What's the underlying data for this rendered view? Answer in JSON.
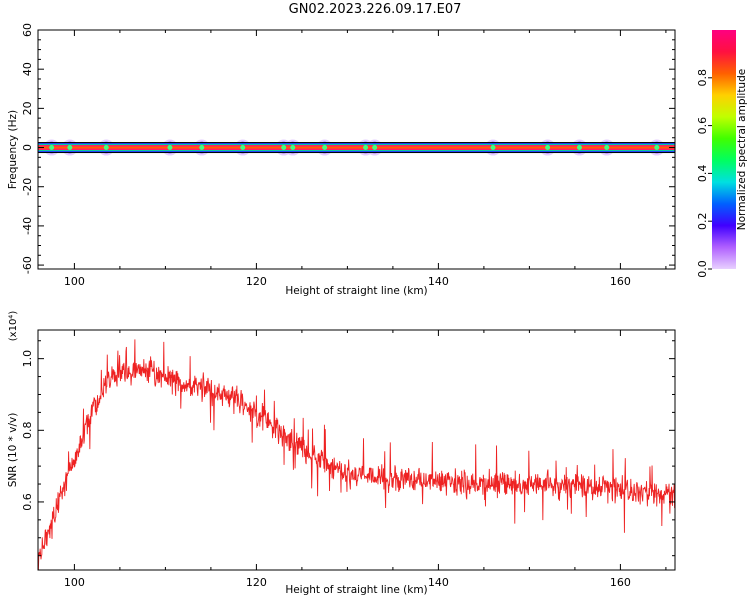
{
  "title": "GN02.2023.226.09.17.E07",
  "chart_data": [
    {
      "type": "heatmap",
      "xlabel": "Height of straight line (km)",
      "ylabel": "Frequency (Hz)",
      "xlim": [
        96,
        166
      ],
      "ylim": [
        -62,
        60
      ],
      "xticks": [
        100,
        120,
        140,
        160
      ],
      "yticks": [
        60,
        40,
        20,
        0,
        -20,
        -40,
        -60
      ],
      "band_center_hz": 0,
      "colorbar": {
        "label": "Normalized spectral amplitude",
        "range": [
          0,
          1
        ],
        "ticks": [
          "0.0",
          "0.2",
          "0.4",
          "0.6",
          "0.8"
        ],
        "colors": [
          "#e8d0ff",
          "#b060ff",
          "#4000ff",
          "#0060ff",
          "#00e0e0",
          "#00ff60",
          "#40ff00",
          "#c0ff00",
          "#ffd000",
          "#ff6000",
          "#ff1040",
          "#ff0080"
        ]
      },
      "blobs_km": [
        97.5,
        99.5,
        103.5,
        110.5,
        114,
        118.5,
        123,
        124,
        127.5,
        132,
        133,
        146,
        152,
        155.5,
        158.5,
        164
      ]
    },
    {
      "type": "line",
      "xlabel": "Height of straight line (km)",
      "ylabel": "SNR (10 * v/v)",
      "y_multiplier": "(x10⁴)",
      "xlim": [
        96,
        166
      ],
      "ylim": [
        0.41,
        1.08
      ],
      "xticks": [
        100,
        120,
        140,
        160
      ],
      "yticks": [
        "1.0",
        "0.8",
        "0.6"
      ],
      "line_color": "#ee2222",
      "trend_x": [
        96,
        98,
        100,
        102,
        104,
        106,
        108,
        110,
        112,
        114,
        116,
        118,
        120,
        122,
        124,
        126,
        128,
        130,
        132,
        134,
        138,
        142,
        146,
        150,
        154,
        158,
        162,
        166
      ],
      "trend_y": [
        0.44,
        0.58,
        0.72,
        0.86,
        0.94,
        0.97,
        0.97,
        0.95,
        0.93,
        0.92,
        0.9,
        0.88,
        0.85,
        0.81,
        0.77,
        0.73,
        0.7,
        0.68,
        0.67,
        0.665,
        0.66,
        0.655,
        0.65,
        0.65,
        0.65,
        0.64,
        0.63,
        0.62
      ]
    }
  ]
}
